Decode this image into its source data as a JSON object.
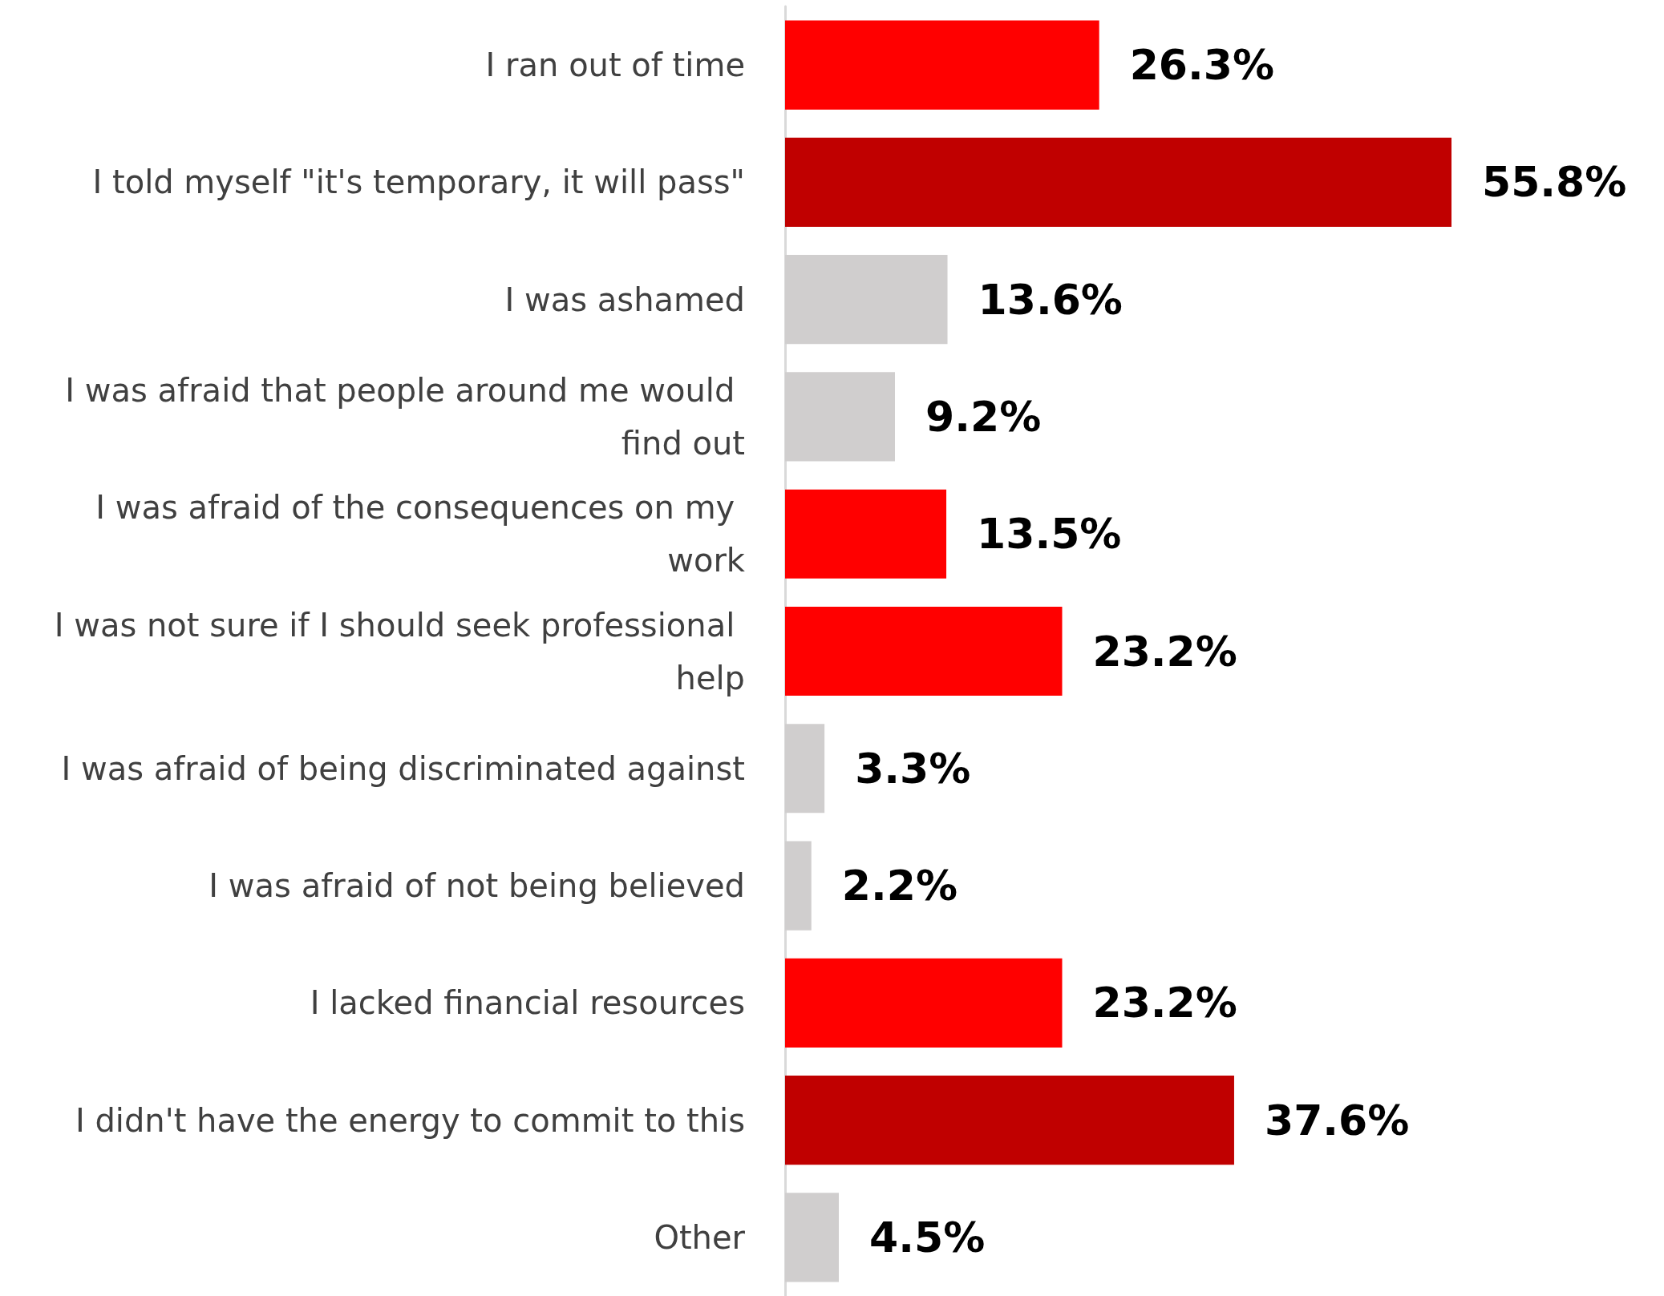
{
  "chart_data": {
    "type": "bar",
    "orientation": "horizontal",
    "categories": [
      "I ran out of time",
      "I told myself \"it's temporary, it will pass\"",
      "I was ashamed",
      "I was afraid that people around me would find out",
      "I was afraid of the consequences on my work",
      "I was not sure if I should seek professional help",
      "I was afraid of being discriminated against",
      "I was afraid of not being believed",
      "I lacked financial resources",
      "I didn't have the energy to commit to this",
      "Other"
    ],
    "values": [
      26.3,
      55.8,
      13.6,
      9.2,
      13.5,
      23.2,
      3.3,
      2.2,
      23.2,
      37.6,
      4.5
    ],
    "colors": [
      "#ff0000",
      "#c00000",
      "#d0cece",
      "#d0cece",
      "#ff0000",
      "#ff0000",
      "#d0cece",
      "#d0cece",
      "#ff0000",
      "#c00000",
      "#d0cece"
    ],
    "value_labels": [
      "26.3%",
      "55.8%",
      "13.6%",
      "9.2%",
      "13.5%",
      "23.2%",
      "3.3%",
      "2.2%",
      "23.2%",
      "37.6%",
      "4.5%"
    ]
  }
}
